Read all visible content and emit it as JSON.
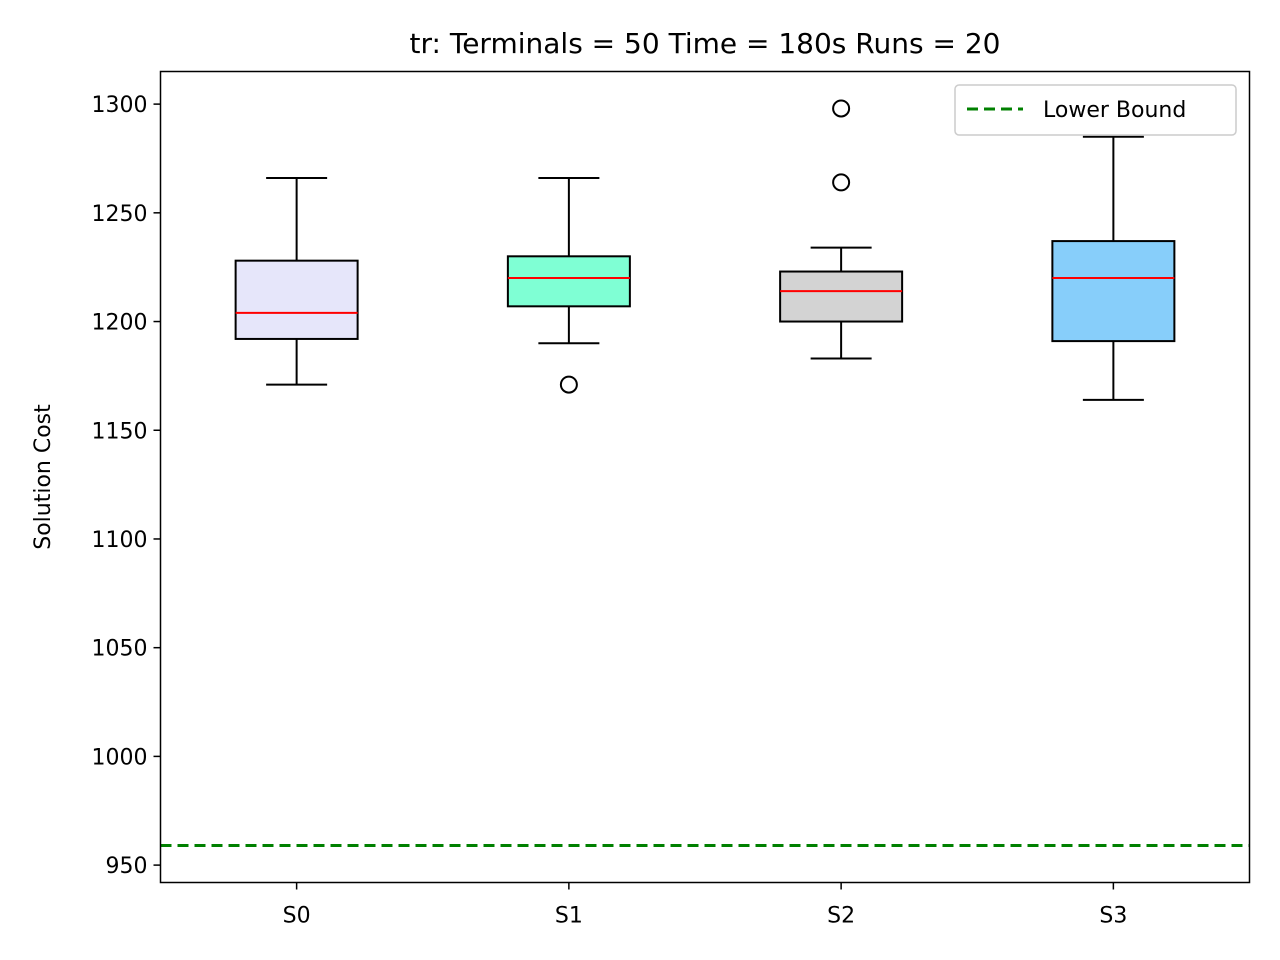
{
  "chart_data": {
    "type": "box",
    "title": "tr:  Terminals = 50  Time = 180s  Runs = 20",
    "xlabel": "",
    "ylabel": "Solution Cost",
    "ylim": [
      942,
      1315
    ],
    "yticks": [
      950,
      1000,
      1050,
      1100,
      1150,
      1200,
      1250,
      1300
    ],
    "categories": [
      "S0",
      "S1",
      "S2",
      "S3"
    ],
    "boxes": [
      {
        "name": "S0",
        "whisker_low": 1171,
        "q1": 1192,
        "median": 1204,
        "q3": 1228,
        "whisker_high": 1266,
        "outliers": [],
        "fill": "#e6e6fa"
      },
      {
        "name": "S1",
        "whisker_low": 1190,
        "q1": 1207,
        "median": 1220,
        "q3": 1230,
        "whisker_high": 1266,
        "outliers": [
          1171
        ],
        "fill": "#7fffd4"
      },
      {
        "name": "S2",
        "whisker_low": 1183,
        "q1": 1200,
        "median": 1214,
        "q3": 1223,
        "whisker_high": 1234,
        "outliers": [
          1264,
          1298
        ],
        "fill": "#d3d3d3"
      },
      {
        "name": "S3",
        "whisker_low": 1164,
        "q1": 1191,
        "median": 1220,
        "q3": 1237,
        "whisker_high": 1285,
        "outliers": [],
        "fill": "#87cefa"
      }
    ],
    "reference_line": {
      "name": "Lower Bound",
      "value": 959,
      "color": "#008000",
      "style": "dashed"
    },
    "median_color": "#ff0000",
    "grid": false,
    "legend": {
      "position": "top-right",
      "entries": [
        "Lower Bound"
      ]
    }
  }
}
